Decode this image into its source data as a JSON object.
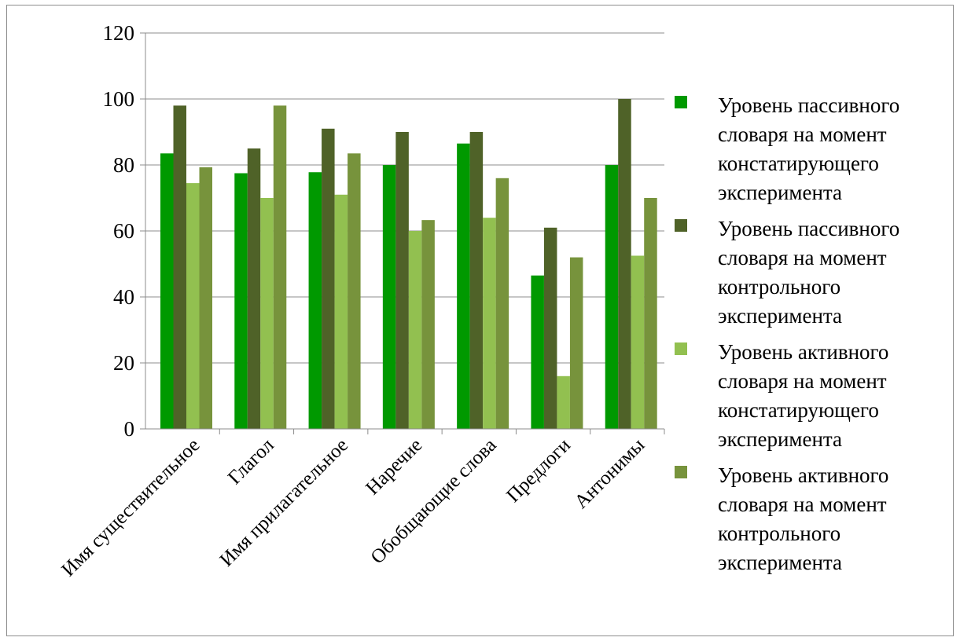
{
  "chart_data": {
    "type": "bar",
    "categories": [
      "Имя существительное",
      "Глагол",
      "Имя прилагательное",
      "Наречие",
      "Обобщающие слова",
      "Предлоги",
      "Антонимы"
    ],
    "series": [
      {
        "name": "Уровень пассивного словаря на момент констатирующего эксперимента",
        "name_lines": [
          "Уровень пассивного",
          "словаря на момент",
          "констатирующего",
          "эксперимента"
        ],
        "color": "#009900",
        "values": [
          83.5,
          77.5,
          77.8,
          80,
          86.5,
          46.5,
          80
        ]
      },
      {
        "name": "Уровень пассивного словаря на момент контрольного эксперимента",
        "name_lines": [
          "Уровень пассивного",
          "словаря на момент",
          "контрольного",
          "эксперимента"
        ],
        "color": "#4f6228",
        "values": [
          98,
          85,
          91,
          90,
          90,
          61,
          100
        ]
      },
      {
        "name": "Уровень активного словаря на момент констатирующего эксперимента",
        "name_lines": [
          "Уровень активного",
          "словаря на момент",
          "констатирующего",
          "эксперимента"
        ],
        "color": "#92c050",
        "values": [
          74.5,
          70,
          71,
          60,
          64,
          16,
          52.5
        ]
      },
      {
        "name": "Уровень активного словаря на момент контрольного эксперимента",
        "name_lines": [
          "Уровень активного",
          "словаря на момент",
          "контрольного",
          "эксперимента"
        ],
        "color": "#77933c",
        "values": [
          79.3,
          98,
          83.5,
          63.3,
          76,
          52,
          70
        ]
      }
    ],
    "yticks": [
      "0",
      "20",
      "40",
      "60",
      "80",
      "100",
      "120"
    ],
    "ylim": [
      0,
      120
    ],
    "grid": true,
    "legend": "right"
  }
}
